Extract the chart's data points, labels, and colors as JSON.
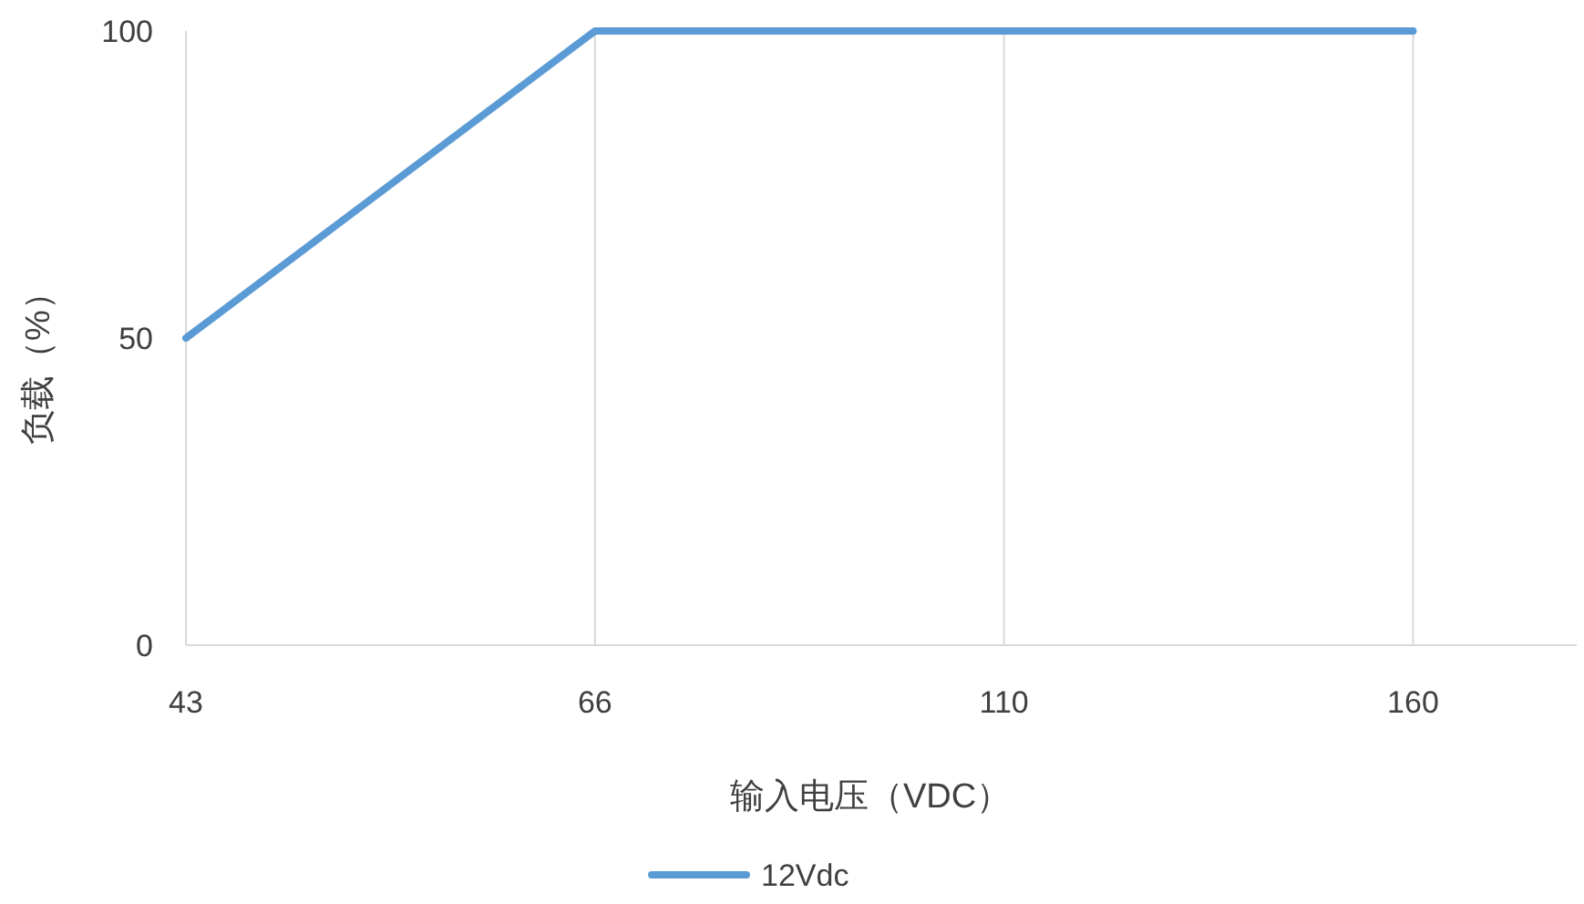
{
  "chart_data": {
    "type": "line",
    "xlabel": "输入电压（VDC）",
    "ylabel": "负载（%）",
    "categories": [
      "43",
      "66",
      "110",
      "160"
    ],
    "series": [
      {
        "name": "12Vdc",
        "color": "#5b9bd5",
        "values": [
          50,
          100,
          100,
          100
        ]
      }
    ],
    "ylim": [
      0,
      100
    ],
    "yticks": [
      0,
      50,
      100
    ],
    "grid": "x",
    "legend": "bottom",
    "marker": "none",
    "line_style": "solid"
  }
}
